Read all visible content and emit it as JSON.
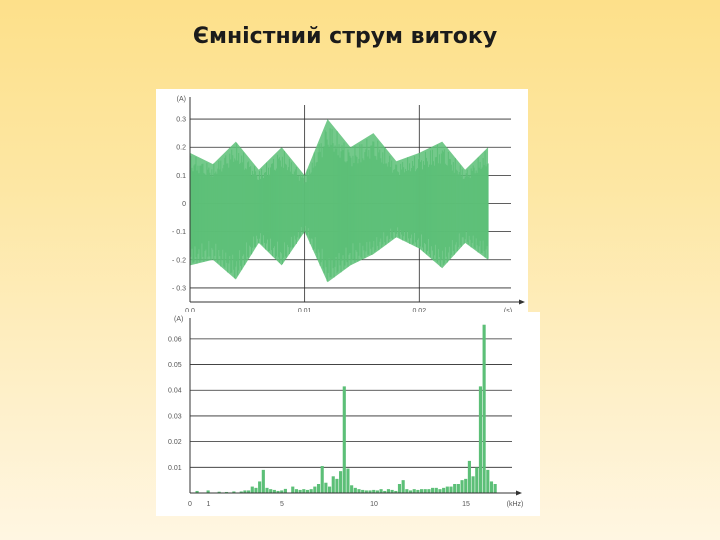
{
  "slide": {
    "title": "Ємністний струм витоку"
  },
  "colors": {
    "series": "#5cbf77",
    "grid": "#2a2a2a",
    "axis": "#333333"
  },
  "chart_data": [
    {
      "type": "area",
      "title": "",
      "unit_y": "(A)",
      "unit_x": "(s)",
      "xlabel": "",
      "ylabel": "",
      "xlim": [
        0,
        0.028
      ],
      "ylim": [
        -0.35,
        0.35
      ],
      "y_ticks": [
        0.3,
        0.2,
        0.1,
        0,
        -0.1,
        -0.2,
        -0.3
      ],
      "y_tick_labels": [
        "0.3",
        "0.2",
        "0.1",
        "0",
        "- 0.1",
        "- 0.2",
        "- 0.3"
      ],
      "x_ticks": [
        0,
        0.01,
        0.02
      ],
      "x_tick_labels": [
        "0.0",
        "0.01",
        "0.02"
      ],
      "vertical_gridlines": [
        0.01,
        0.02
      ],
      "grid": true,
      "x": [
        0.0,
        0.002,
        0.004,
        0.006,
        0.008,
        0.01,
        0.012,
        0.014,
        0.016,
        0.018,
        0.02,
        0.022,
        0.024,
        0.026
      ],
      "upper": [
        0.18,
        0.14,
        0.22,
        0.12,
        0.2,
        0.1,
        0.3,
        0.2,
        0.25,
        0.15,
        0.18,
        0.22,
        0.12,
        0.2
      ],
      "lower": [
        -0.22,
        -0.2,
        -0.27,
        -0.14,
        -0.22,
        -0.1,
        -0.28,
        -0.22,
        -0.18,
        -0.12,
        -0.16,
        -0.23,
        -0.14,
        -0.2
      ]
    },
    {
      "type": "bar",
      "title": "",
      "unit_y": "(A)",
      "unit_x": "(kHz)",
      "xlabel": "",
      "ylabel": "",
      "xlim": [
        0,
        17.5
      ],
      "ylim": [
        0,
        0.065
      ],
      "y_ticks": [
        0.01,
        0.02,
        0.03,
        0.04,
        0.05,
        0.06
      ],
      "y_tick_labels": [
        "0.01",
        "0.02",
        "0.03",
        "0.04",
        "0.05",
        "0.06"
      ],
      "x_ticks": [
        0,
        1,
        5,
        10,
        15
      ],
      "x_tick_labels": [
        "0",
        "1",
        "5",
        "10",
        "15"
      ],
      "grid": true,
      "bar_width": 0.2,
      "x": [
        0.4,
        1.0,
        1.6,
        2.0,
        2.4,
        2.8,
        3.0,
        3.2,
        3.4,
        3.6,
        3.8,
        4.0,
        4.2,
        4.4,
        4.6,
        4.8,
        5.0,
        5.2,
        5.6,
        5.8,
        6.0,
        6.2,
        6.4,
        6.6,
        6.8,
        7.0,
        7.2,
        7.4,
        7.6,
        7.8,
        8.0,
        8.2,
        8.4,
        8.6,
        8.8,
        9.0,
        9.2,
        9.4,
        9.6,
        9.8,
        10.0,
        10.2,
        10.4,
        10.6,
        10.8,
        11.0,
        11.2,
        11.4,
        11.6,
        11.8,
        12.0,
        12.2,
        12.4,
        12.6,
        12.8,
        13.0,
        13.2,
        13.4,
        13.6,
        13.8,
        14.0,
        14.2,
        14.4,
        14.6,
        14.8,
        15.0,
        15.2,
        15.4,
        15.6,
        15.8,
        16.0,
        16.2,
        16.4,
        16.6
      ],
      "values": [
        0.0008,
        0.001,
        0.0005,
        0.0004,
        0.0006,
        0.0006,
        0.001,
        0.001,
        0.0025,
        0.002,
        0.0045,
        0.009,
        0.002,
        0.0015,
        0.0012,
        0.0008,
        0.001,
        0.0016,
        0.0025,
        0.0015,
        0.0012,
        0.0015,
        0.0012,
        0.0015,
        0.0025,
        0.0035,
        0.0105,
        0.004,
        0.0025,
        0.0065,
        0.0055,
        0.0085,
        0.0415,
        0.0095,
        0.003,
        0.002,
        0.0015,
        0.0012,
        0.001,
        0.001,
        0.0012,
        0.001,
        0.0015,
        0.0008,
        0.0015,
        0.0012,
        0.0008,
        0.0035,
        0.005,
        0.0015,
        0.001,
        0.0015,
        0.0012,
        0.0015,
        0.0015,
        0.0015,
        0.002,
        0.002,
        0.0015,
        0.002,
        0.0025,
        0.0025,
        0.0035,
        0.0035,
        0.005,
        0.0055,
        0.0125,
        0.0065,
        0.01,
        0.0415,
        0.0655,
        0.009,
        0.0045,
        0.0035
      ]
    }
  ]
}
